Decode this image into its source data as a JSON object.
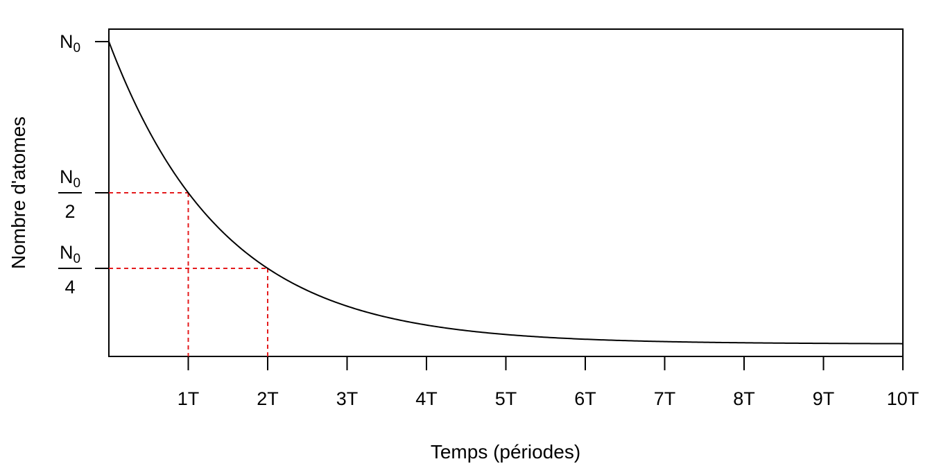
{
  "chart_data": {
    "type": "line",
    "title": "",
    "xlabel": "Temps (périodes)",
    "ylabel": "Nombre d'atomes",
    "x_ticks": [
      {
        "value": 1,
        "label": "1T"
      },
      {
        "value": 2,
        "label": "2T"
      },
      {
        "value": 3,
        "label": "3T"
      },
      {
        "value": 4,
        "label": "4T"
      },
      {
        "value": 5,
        "label": "5T"
      },
      {
        "value": 6,
        "label": "6T"
      },
      {
        "value": 7,
        "label": "7T"
      },
      {
        "value": 8,
        "label": "8T"
      },
      {
        "value": 9,
        "label": "9T"
      },
      {
        "value": 10,
        "label": "10T"
      }
    ],
    "y_ticks": [
      {
        "value": 1,
        "symbol": "N",
        "subscript": "0",
        "denominator": ""
      },
      {
        "value": 0.5,
        "symbol": "N",
        "subscript": "0",
        "denominator": "2"
      },
      {
        "value": 0.25,
        "symbol": "N",
        "subscript": "0",
        "denominator": "4"
      }
    ],
    "xlim": [
      0,
      10
    ],
    "ylim": [
      0,
      1
    ],
    "series": [
      {
        "color": "#000000",
        "x": [
          0,
          0.5,
          1,
          1.5,
          2,
          2.5,
          3,
          3.5,
          4,
          4.5,
          5,
          5.5,
          6,
          6.5,
          7,
          7.5,
          8,
          8.5,
          9,
          9.5,
          10
        ],
        "y": [
          1,
          0.7071,
          0.5,
          0.3536,
          0.25,
          0.1768,
          0.125,
          0.0884,
          0.0625,
          0.0442,
          0.0313,
          0.0221,
          0.0156,
          0.011,
          0.0078,
          0.0055,
          0.0039,
          0.0028,
          0.002,
          0.0014,
          0.001
        ]
      }
    ],
    "guide_lines": [
      {
        "x": 1,
        "y": 0.5
      },
      {
        "x": 2,
        "y": 0.25
      }
    ],
    "guide_color": "#e41a1c",
    "grid": false,
    "legend": "none"
  }
}
